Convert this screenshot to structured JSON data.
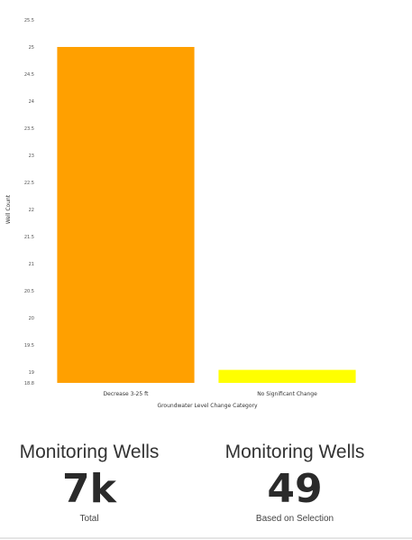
{
  "chart_data": {
    "type": "bar",
    "categories": [
      "Decrease 3-25 ft",
      "No Significant Change"
    ],
    "values": [
      25,
      19.04
    ],
    "colors": [
      "#ffa000",
      "#ffff00"
    ],
    "ylim": [
      18.8,
      25.5
    ],
    "yticks": [
      "25.5",
      "25",
      "24.5",
      "24",
      "23.5",
      "23",
      "22.5",
      "22",
      "21.5",
      "21",
      "20.5",
      "20",
      "19.5",
      "19",
      "18.8"
    ],
    "yticks_values": [
      25.5,
      25.0,
      24.5,
      24.0,
      23.5,
      23.0,
      22.5,
      22.0,
      21.5,
      21.0,
      20.5,
      20.0,
      19.5,
      19.0,
      18.8
    ],
    "xlabel": "Groundwater Level Change Category",
    "ylabel": "Well Count",
    "grid": false,
    "legend": "none"
  },
  "kpis": {
    "left": {
      "title": "Monitoring Wells",
      "value": "7k",
      "caption": "Total"
    },
    "right": {
      "title": "Monitoring Wells",
      "value": "49",
      "caption": "Based on Selection"
    }
  }
}
